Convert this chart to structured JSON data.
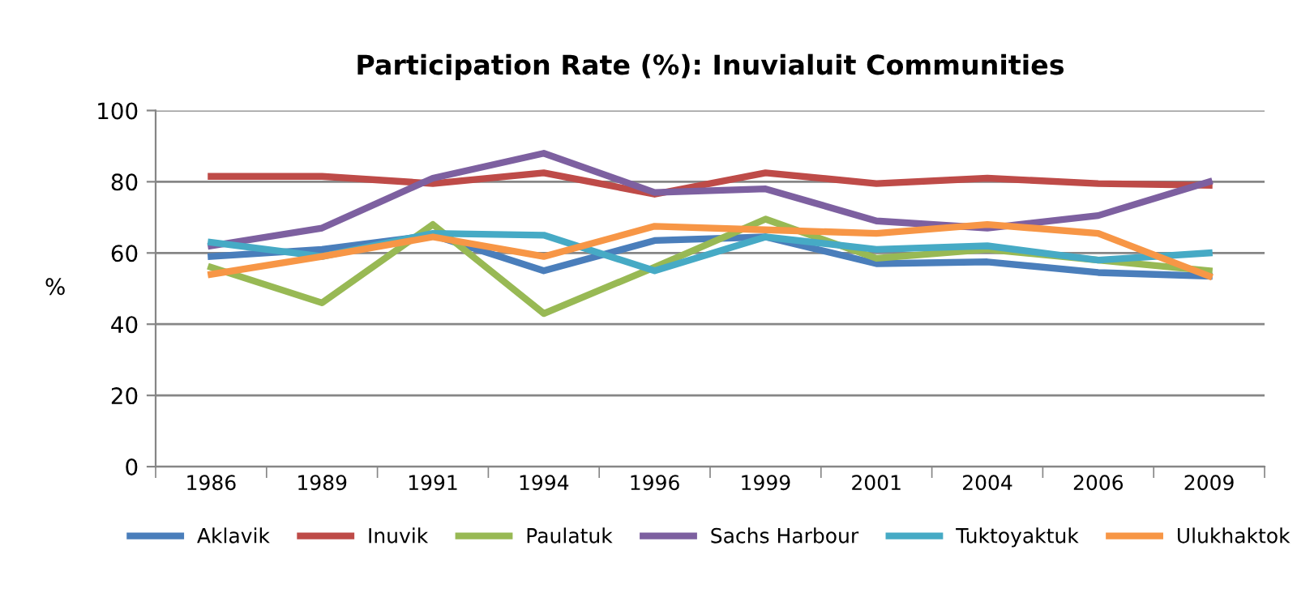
{
  "chart_data": {
    "type": "line",
    "title": "Participation Rate (%): Inuvialuit Communities",
    "ylabel": "%",
    "categories": [
      "1986",
      "1989",
      "1991",
      "1994",
      "1996",
      "1999",
      "2001",
      "2004",
      "2006",
      "2009"
    ],
    "series": [
      {
        "name": "Aklavik",
        "color": "#4a7ebb",
        "values": [
          59,
          61,
          65,
          55,
          63.5,
          64.5,
          57,
          57.5,
          54.5,
          53.5
        ]
      },
      {
        "name": "Inuvik",
        "color": "#be4b48",
        "values": [
          81.5,
          81.5,
          79.5,
          82.5,
          76.5,
          82.5,
          79.5,
          81,
          79.5,
          79
        ]
      },
      {
        "name": "Paulatuk",
        "color": "#98b954",
        "values": [
          56,
          46,
          68,
          43,
          56,
          69.5,
          58.5,
          61,
          58,
          55
        ]
      },
      {
        "name": "Sachs Harbour",
        "color": "#7d60a0",
        "values": [
          62,
          67,
          81,
          88,
          77,
          78,
          69,
          67,
          70.5,
          80
        ]
      },
      {
        "name": "Tuktoyaktuk",
        "color": "#46aac5",
        "values": [
          63,
          59,
          65.5,
          65,
          55,
          64.5,
          61,
          62,
          58,
          60
        ]
      },
      {
        "name": "Ulukhaktok",
        "color": "#f79646",
        "values": [
          54,
          59,
          64.5,
          59,
          67.5,
          66.5,
          65.5,
          68,
          65.5,
          53.5
        ]
      }
    ],
    "ylim": [
      0,
      100
    ],
    "yticks": [
      0,
      20,
      40,
      60,
      80,
      100
    ],
    "grid": "y",
    "legend": "bottom",
    "marker": "none",
    "line_style": "solid"
  }
}
